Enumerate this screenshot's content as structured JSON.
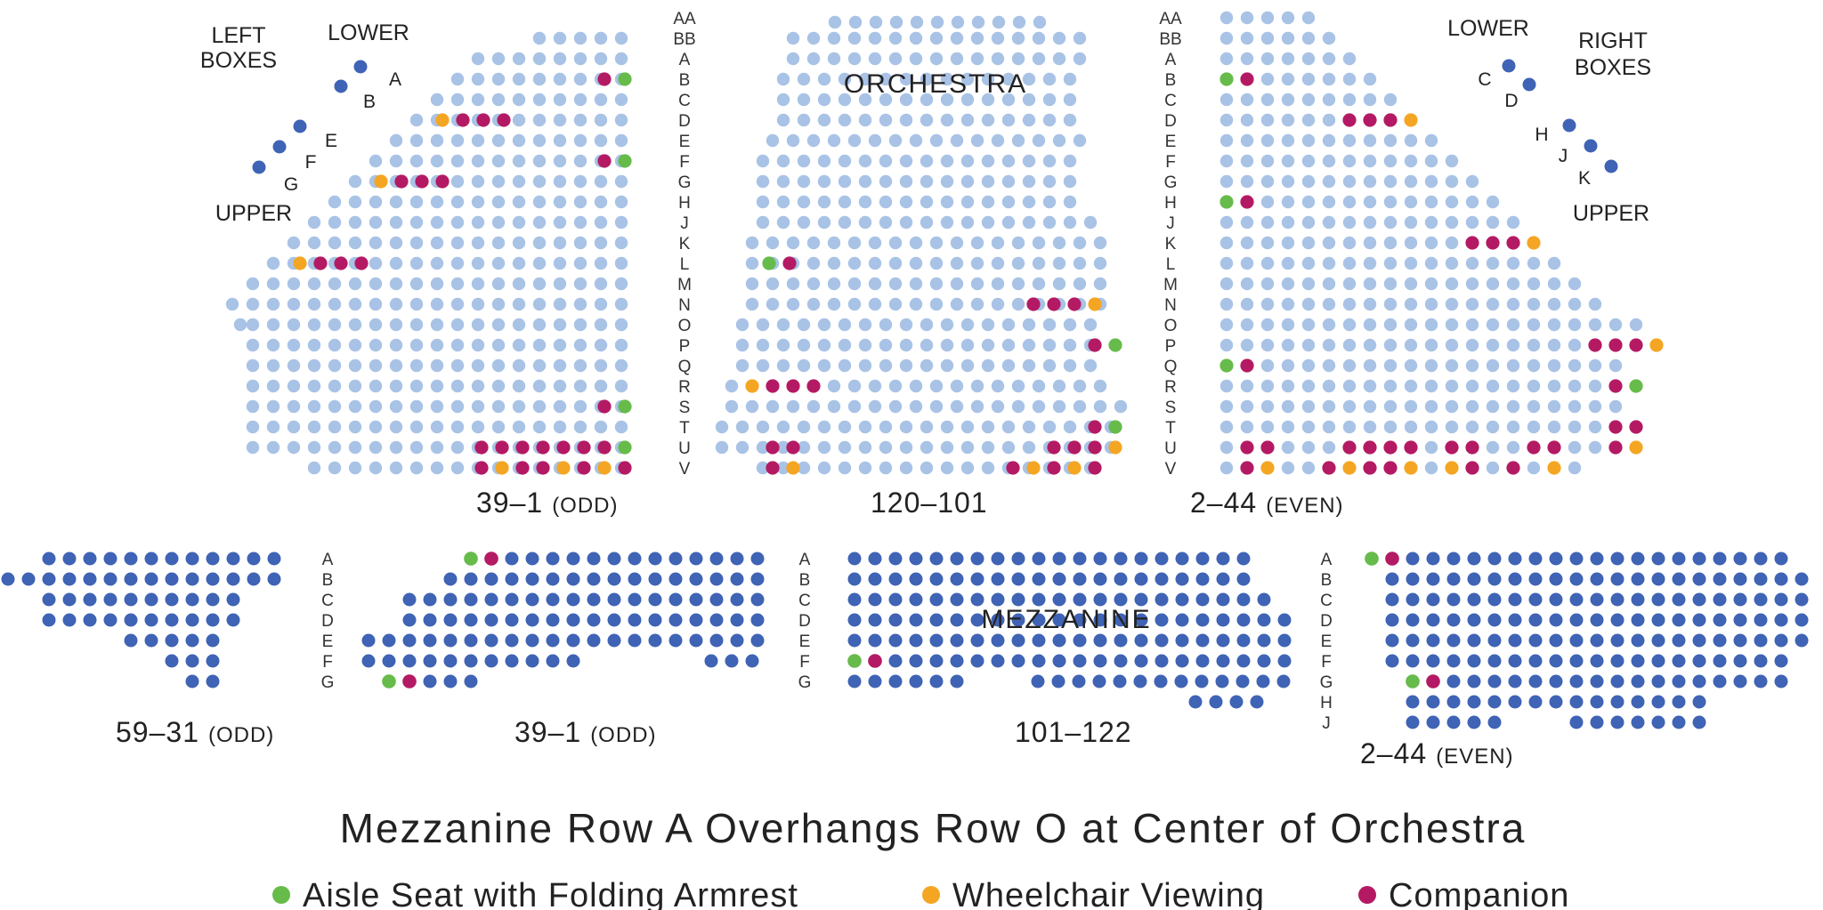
{
  "colors": {
    "orchestra": "#a9c3e6",
    "mezzanine": "#3f63b5",
    "aisle": "#66bb4a",
    "wheelchair": "#f4a623",
    "companion": "#b41a63"
  },
  "boxes": {
    "left_heading": [
      "LEFT",
      "BOXES"
    ],
    "right_heading": [
      "RIGHT",
      "BOXES"
    ],
    "lower": "LOWER",
    "upper": "UPPER",
    "left_letters": [
      "A",
      "B",
      "E",
      "F",
      "G"
    ],
    "right_letters": [
      "C",
      "D",
      "H",
      "J",
      "K"
    ]
  },
  "orchestra": {
    "title": "ORCHESTRA",
    "rows": [
      "AA",
      "BB",
      "A",
      "B",
      "C",
      "D",
      "E",
      "F",
      "G",
      "H",
      "J",
      "K",
      "L",
      "M",
      "N",
      "O",
      "P",
      "Q",
      "R",
      "S",
      "T",
      "U",
      "V"
    ],
    "left_section": {
      "number": "39–1",
      "parity": "(ODD)"
    },
    "center_section": {
      "number": "120–101"
    },
    "right_section": {
      "number": "2–44",
      "parity": "(EVEN)"
    }
  },
  "mezzanine": {
    "title": "MEZZANINE",
    "rows_left": [
      "A",
      "B",
      "C",
      "D",
      "E",
      "F",
      "G"
    ],
    "rows_center": [
      "A",
      "B",
      "C",
      "D",
      "E",
      "F",
      "G"
    ],
    "rows_right": [
      "A",
      "B",
      "C",
      "D",
      "E",
      "F",
      "G",
      "H",
      "J"
    ],
    "far_left_section": {
      "number": "59–31",
      "parity": "(ODD)"
    },
    "left_section": {
      "number": "39–1",
      "parity": "(ODD)"
    },
    "center_section": {
      "number": "101–122"
    },
    "right_section": {
      "number": "2–44",
      "parity": "(EVEN)"
    }
  },
  "note": "Mezzanine Row A Overhangs Row O at Center of Orchestra",
  "legend": [
    {
      "key": "aisle",
      "label": "Aisle Seat with Folding Armrest"
    },
    {
      "key": "wheelchair",
      "label": "Wheelchair Viewing"
    },
    {
      "key": "companion",
      "label": "Companion"
    }
  ]
}
